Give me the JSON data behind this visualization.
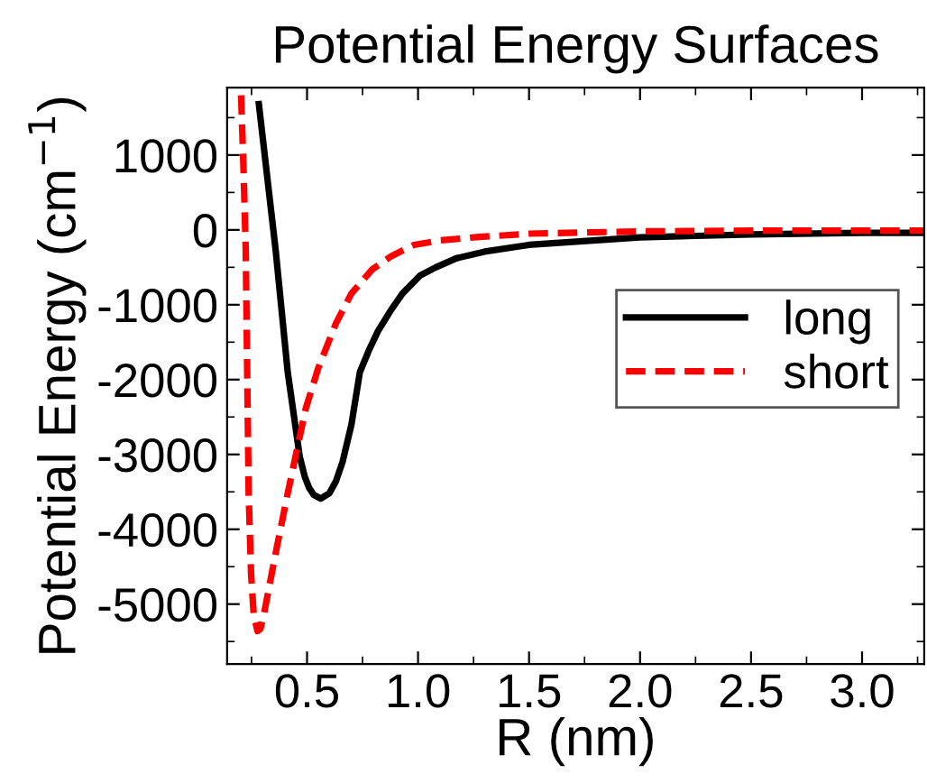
{
  "chart_data": {
    "type": "line",
    "title": "Potential Energy Surfaces",
    "xlabel": "R (nm)",
    "ylabel": "Potential Energy (cm$^{−1}$)",
    "xlim": [
      0.14,
      3.28
    ],
    "xticks": [
      0.5,
      {
        "value": 1,
        "label": "1.0"
      },
      1.5,
      {
        "value": 2,
        "label": "2.0"
      },
      2.5,
      {
        "value": 3,
        "label": "3.0"
      }
    ],
    "ylim": [
      -5800,
      1900
    ],
    "yticks": [
      -5000,
      -4000,
      -3000,
      -2000,
      -1000,
      0,
      1000
    ],
    "grid": false,
    "legend": "top right",
    "series": [
      {
        "name": "long",
        "color": "#000000",
        "line_style": "solid",
        "x": [
          0.283,
          0.359,
          0.413,
          0.467,
          0.49,
          0.51,
          0.53,
          0.562,
          0.6,
          0.63,
          0.66,
          0.7,
          0.738,
          0.78,
          0.82,
          0.874,
          0.93,
          1.009,
          1.08,
          1.172,
          1.3,
          1.5,
          2.0,
          2.5,
          3.0,
          3.28
        ],
        "values": [
          1680,
          -280,
          -1900,
          -3030,
          -3300,
          -3450,
          -3540,
          -3590,
          -3520,
          -3360,
          -3100,
          -2600,
          -1900,
          -1600,
          -1350,
          -1090,
          -850,
          -610,
          -500,
          -380,
          -290,
          -200,
          -100,
          -60,
          -40,
          -40
        ]
      },
      {
        "name": "short",
        "color": "#ff0000",
        "line_style": "dashed",
        "x": [
          0.203,
          0.214,
          0.224,
          0.237,
          0.248,
          0.26,
          0.277,
          0.29,
          0.305,
          0.332,
          0.36,
          0.413,
          0.45,
          0.494,
          0.55,
          0.63,
          0.7,
          0.793,
          0.88,
          0.982,
          1.1,
          1.25,
          1.5,
          2.0,
          2.5,
          3.28
        ],
        "values": [
          1800,
          800,
          -280,
          -3520,
          -4600,
          -5150,
          -5360,
          -5330,
          -5150,
          -4730,
          -4300,
          -3520,
          -3000,
          -2390,
          -1850,
          -1250,
          -850,
          -530,
          -350,
          -200,
          -140,
          -100,
          -50,
          -20,
          -10,
          -10
        ]
      }
    ]
  }
}
